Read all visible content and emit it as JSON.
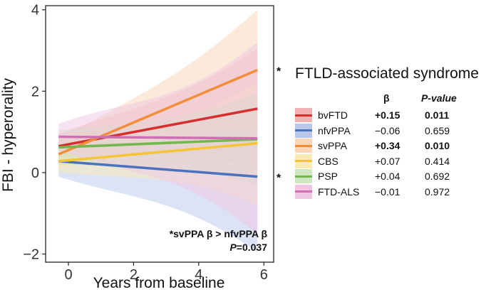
{
  "chart_data": {
    "type": "line",
    "xlabel": "Years from baseline",
    "ylabel": "FBI - hyperorality",
    "xlim": [
      -0.7,
      6.3
    ],
    "ylim": [
      -2.2,
      4.1
    ],
    "x_ticks": [
      "0",
      "2",
      "4",
      "6"
    ],
    "y_ticks": [
      "−2",
      "0",
      "2",
      "4"
    ],
    "grid": false,
    "legend_position": "right",
    "legend_title": "FTLD-associated syndrome",
    "legend_columns": [
      "β",
      "P-value"
    ],
    "series": [
      {
        "name": "bvFTD",
        "color": "#d62f2f",
        "fill": "#f3b0b0",
        "beta": "+0.15",
        "p": "0.011",
        "bold": true,
        "x": [
          -0.3,
          5.8
        ],
        "y": [
          0.65,
          1.57
        ],
        "lower": [
          0.35,
          0.1
        ],
        "upper": [
          0.95,
          3.05
        ]
      },
      {
        "name": "nfvPPA",
        "color": "#4a72bf",
        "fill": "#b9c8ea",
        "beta": "−0.06",
        "p": "0.659",
        "bold": false,
        "x": [
          -0.3,
          5.8
        ],
        "y": [
          0.28,
          -0.1
        ],
        "lower": [
          -0.1,
          -1.95
        ],
        "upper": [
          0.66,
          1.75
        ]
      },
      {
        "name": "svPPA",
        "color": "#f28d3a",
        "fill": "#f8d6b6",
        "beta": "+0.34",
        "p": "0.010",
        "bold": true,
        "x": [
          -0.3,
          5.8
        ],
        "y": [
          0.45,
          2.52
        ],
        "lower": [
          0.1,
          1.0
        ],
        "upper": [
          0.8,
          4.0
        ]
      },
      {
        "name": "CBS",
        "color": "#f5c531",
        "fill": "#f9ebb3",
        "beta": "+0.07",
        "p": "0.414",
        "bold": false,
        "x": [
          -0.3,
          5.8
        ],
        "y": [
          0.28,
          0.72
        ],
        "lower": [
          0.02,
          -0.8
        ],
        "upper": [
          0.54,
          2.2
        ]
      },
      {
        "name": "PSP",
        "color": "#72b84c",
        "fill": "#cfe6c0",
        "beta": "+0.04",
        "p": "0.692",
        "bold": false,
        "x": [
          -0.3,
          5.8
        ],
        "y": [
          0.62,
          0.82
        ],
        "lower": [
          0.2,
          -0.3
        ],
        "upper": [
          1.04,
          1.95
        ]
      },
      {
        "name": "FTD-ALS",
        "color": "#cf6fb3",
        "fill": "#efc5e3",
        "beta": "−0.01",
        "p": "0.972",
        "bold": false,
        "x": [
          -0.3,
          5.8
        ],
        "y": [
          0.88,
          0.84
        ],
        "lower": [
          0.55,
          -1.5
        ],
        "upper": [
          1.2,
          3.2
        ]
      }
    ],
    "series_markers": [
      {
        "series": "svPPA",
        "text": "*"
      },
      {
        "series": "nfvPPA",
        "text": "*"
      }
    ],
    "annotation": [
      "*svPPA β > nfvPPA β",
      "P=0.037"
    ]
  }
}
